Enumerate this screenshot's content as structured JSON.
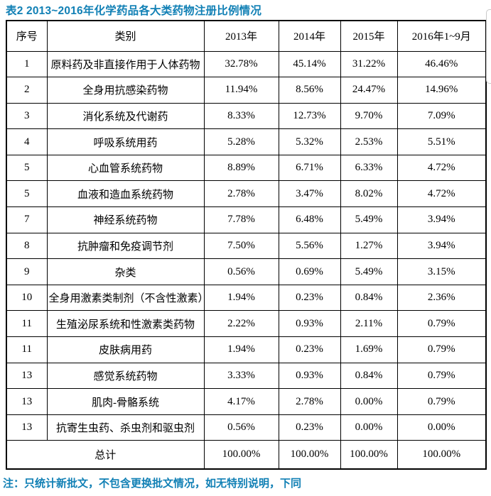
{
  "title": "表2 2013~2016年化学药品各大类药物注册比例情况",
  "note": "注：只统计新批文，不包含更换批文情况，如无特别说明，下同",
  "table": {
    "headers": [
      "序号",
      "类别",
      "2013年",
      "2014年",
      "2015年",
      "2016年1~9月"
    ],
    "rows": [
      [
        "1",
        "原料药及非直接作用于人体药物",
        "32.78%",
        "45.14%",
        "31.22%",
        "46.46%"
      ],
      [
        "2",
        "全身用抗感染药物",
        "11.94%",
        "8.56%",
        "24.47%",
        "14.96%"
      ],
      [
        "3",
        "消化系统及代谢药",
        "8.33%",
        "12.73%",
        "9.70%",
        "7.09%"
      ],
      [
        "4",
        "呼吸系统用药",
        "5.28%",
        "5.32%",
        "2.53%",
        "5.51%"
      ],
      [
        "5",
        "心血管系统药物",
        "8.89%",
        "6.71%",
        "6.33%",
        "4.72%"
      ],
      [
        "5",
        "血液和造血系统药物",
        "2.78%",
        "3.47%",
        "8.02%",
        "4.72%"
      ],
      [
        "7",
        "神经系统药物",
        "7.78%",
        "6.48%",
        "5.49%",
        "3.94%"
      ],
      [
        "8",
        "抗肿瘤和免疫调节剂",
        "7.50%",
        "5.56%",
        "1.27%",
        "3.94%"
      ],
      [
        "9",
        "杂类",
        "0.56%",
        "0.69%",
        "5.49%",
        "3.15%"
      ],
      [
        "10",
        "全身用激素类制剂（不含性激素）",
        "1.94%",
        "0.23%",
        "0.84%",
        "2.36%"
      ],
      [
        "11",
        "生殖泌尿系统和性激素类药物",
        "2.22%",
        "0.93%",
        "2.11%",
        "0.79%"
      ],
      [
        "11",
        "皮肤病用药",
        "1.94%",
        "0.23%",
        "1.69%",
        "0.79%"
      ],
      [
        "13",
        "感觉系统药物",
        "3.33%",
        "0.93%",
        "0.84%",
        "0.79%"
      ],
      [
        "13",
        "肌肉-骨骼系统",
        "4.17%",
        "2.78%",
        "0.00%",
        "0.79%"
      ],
      [
        "13",
        "抗寄生虫药、杀虫剂和驱虫剂",
        "0.56%",
        "0.23%",
        "0.00%",
        "0.00%"
      ]
    ],
    "total": {
      "label": "总计",
      "values": [
        "100.00%",
        "100.00%",
        "100.00%",
        "100.00%"
      ]
    }
  },
  "chart_data": {
    "type": "table",
    "title": "表2 2013~2016年化学药品各大类药物注册比例情况",
    "columns": [
      "序号",
      "类别",
      "2013年",
      "2014年",
      "2015年",
      "2016年1~9月"
    ],
    "series": [
      {
        "name": "2013年",
        "values": [
          32.78,
          11.94,
          8.33,
          5.28,
          8.89,
          2.78,
          7.78,
          7.5,
          0.56,
          1.94,
          2.22,
          1.94,
          3.33,
          4.17,
          0.56,
          100.0
        ]
      },
      {
        "name": "2014年",
        "values": [
          45.14,
          8.56,
          12.73,
          5.32,
          6.71,
          3.47,
          6.48,
          5.56,
          0.69,
          0.23,
          0.93,
          0.23,
          0.93,
          2.78,
          0.23,
          100.0
        ]
      },
      {
        "name": "2015年",
        "values": [
          31.22,
          24.47,
          9.7,
          2.53,
          6.33,
          8.02,
          5.49,
          1.27,
          5.49,
          0.84,
          2.11,
          1.69,
          0.84,
          0.0,
          0.0,
          100.0
        ]
      },
      {
        "name": "2016年1~9月",
        "values": [
          46.46,
          14.96,
          7.09,
          5.51,
          4.72,
          4.72,
          3.94,
          3.94,
          3.15,
          2.36,
          0.79,
          0.79,
          0.79,
          0.79,
          0.0,
          100.0
        ]
      }
    ]
  },
  "decoration": {
    "page_edge_color": "#c9c9c9"
  }
}
